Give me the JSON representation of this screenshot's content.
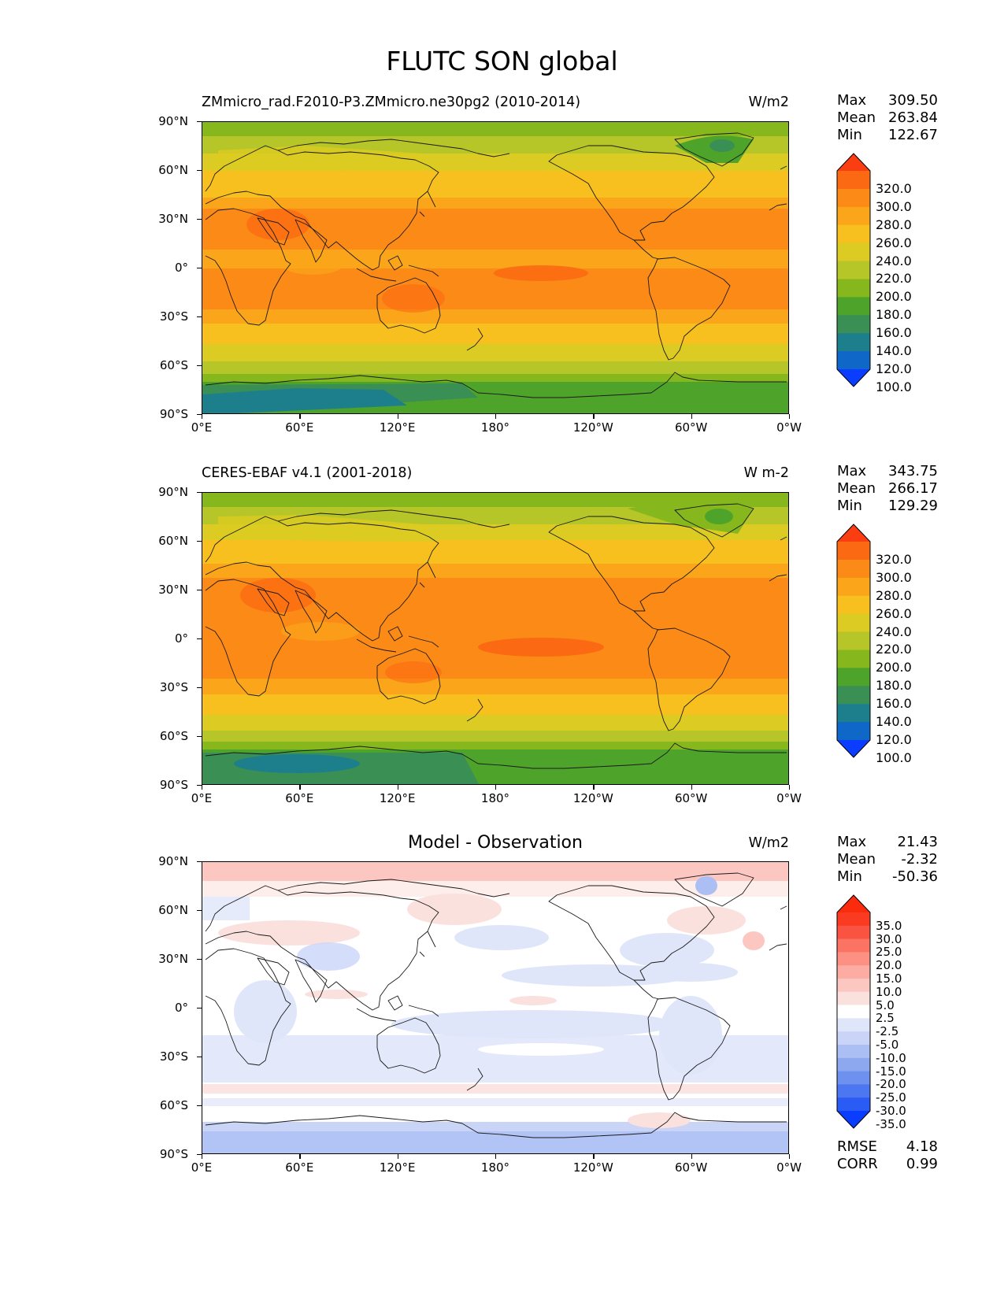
{
  "title": "FLUTC SON global",
  "lat_ticks": [
    "90°N",
    "60°N",
    "30°N",
    "0°",
    "30°S",
    "60°S",
    "90°S"
  ],
  "lon_ticks": [
    "0°E",
    "60°E",
    "120°E",
    "180°",
    "120°W",
    "60°W",
    "0°W"
  ],
  "panels": [
    {
      "id": "model",
      "subtitle": "ZMmicro_rad.F2010-P3.ZMmicro.ne30pg2 (2010-2014)",
      "panel_title": "",
      "units": "W/m2",
      "stats": {
        "max_label": "Max",
        "max": "309.50",
        "mean_label": "Mean",
        "mean": "263.84",
        "min_label": "Min",
        "min": "122.67"
      },
      "colorbar_labels": [
        "320.0",
        "300.0",
        "280.0",
        "260.0",
        "240.0",
        "220.0",
        "200.0",
        "180.0",
        "160.0",
        "140.0",
        "120.0",
        "100.0"
      ],
      "colors": [
        "#0a3dff",
        "#0f67c7",
        "#1e7f8c",
        "#3a8f54",
        "#4ea32a",
        "#86b81d",
        "#b6c527",
        "#dccb22",
        "#f7c01e",
        "#fba51a",
        "#fc8a16",
        "#fb6a12",
        "#fb3d12"
      ]
    },
    {
      "id": "obs",
      "subtitle": "CERES-EBAF v4.1 (2001-2018)",
      "panel_title": "",
      "units": "W m-2",
      "stats": {
        "max_label": "Max",
        "max": "343.75",
        "mean_label": "Mean",
        "mean": "266.17",
        "min_label": "Min",
        "min": "129.29"
      },
      "colorbar_labels": [
        "320.0",
        "300.0",
        "280.0",
        "260.0",
        "240.0",
        "220.0",
        "200.0",
        "180.0",
        "160.0",
        "140.0",
        "120.0",
        "100.0"
      ],
      "colors": [
        "#0a3dff",
        "#0f67c7",
        "#1e7f8c",
        "#3a8f54",
        "#4ea32a",
        "#86b81d",
        "#b6c527",
        "#dccb22",
        "#f7c01e",
        "#fba51a",
        "#fc8a16",
        "#fb6a12",
        "#fb3d12"
      ]
    },
    {
      "id": "diff",
      "subtitle": "",
      "panel_title": "Model - Observation",
      "units": "W/m2",
      "stats": {
        "max_label": "Max",
        "max": "21.43",
        "mean_label": "Mean",
        "mean": "-2.32",
        "min_label": "Min",
        "min": "-50.36"
      },
      "colorbar_labels": [
        "35.0",
        "30.0",
        "25.0",
        "20.0",
        "15.0",
        "10.0",
        "5.0",
        "2.5",
        "-2.5",
        "-5.0",
        "-10.0",
        "-15.0",
        "-20.0",
        "-25.0",
        "-30.0",
        "-35.0"
      ],
      "colors": [
        "#0a3dff",
        "#2b5bf5",
        "#4d77f0",
        "#6e90ef",
        "#8ea8f0",
        "#acbff4",
        "#c9d4f7",
        "#e0e6fa",
        "#ffffff",
        "#fbe1de",
        "#fcc7c1",
        "#fcaca3",
        "#fc9083",
        "#fb7363",
        "#fb5342",
        "#fb3a22",
        "#fb2b0e"
      ],
      "footer": {
        "rmse_label": "RMSE",
        "rmse": "4.18",
        "corr_label": "CORR",
        "corr": "0.99"
      }
    }
  ]
}
